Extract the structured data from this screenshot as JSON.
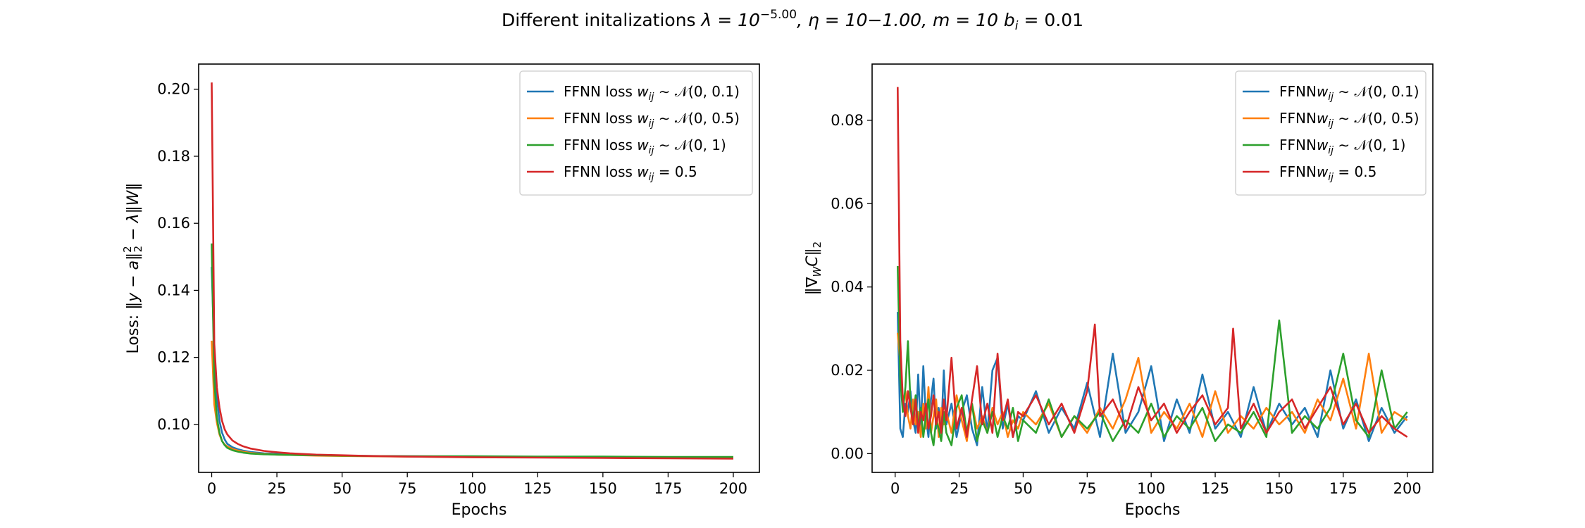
{
  "figure": {
    "suptitle_prefix": "Different initalizations ",
    "suptitle_lambda": "λ = 10",
    "suptitle_lambda_exp": "−5.00",
    "suptitle_rest": ", η = 10−1.00, m = 10  b",
    "suptitle_bsub": "i",
    "suptitle_bval": " = 0.01"
  },
  "colors": {
    "series1": "#1f77b4",
    "series2": "#ff7f0e",
    "series3": "#2ca02c",
    "series4": "#d62728"
  },
  "chart_data": [
    {
      "type": "line",
      "panel": "left",
      "xlabel": "Epochs",
      "ylabel_prefix": "Loss: ‖y − a‖",
      "ylabel_sub": "2",
      "ylabel_sup": "2",
      "ylabel_suffix": " − λ‖W‖",
      "xlim": [
        -5,
        210
      ],
      "ylim": [
        0.0857,
        0.2075
      ],
      "xticks": [
        0,
        25,
        50,
        75,
        100,
        125,
        150,
        175,
        200
      ],
      "yticks": [
        0.1,
        0.12,
        0.14,
        0.16,
        0.18,
        0.2
      ],
      "ytick_labels": [
        "0.10",
        "0.12",
        "0.14",
        "0.16",
        "0.18",
        "0.20"
      ],
      "legend_placement": "upper right",
      "series": [
        {
          "name": "FFNN loss w_ij ∼ 𝒩(0, 0.1)",
          "legend_prefix": "FFNN loss ",
          "legend_math": "w",
          "legend_sub": "ij",
          "legend_rest": " ∼ 𝒩(0, 0.1)",
          "color_key": "series1",
          "x": [
            0,
            1,
            2,
            3,
            4,
            5,
            6,
            8,
            10,
            12,
            15,
            20,
            25,
            30,
            40,
            50,
            60,
            75,
            100,
            125,
            150,
            175,
            200
          ],
          "y": [
            0.147,
            0.121,
            0.108,
            0.101,
            0.0975,
            0.0955,
            0.0942,
            0.0932,
            0.0926,
            0.0922,
            0.0918,
            0.0914,
            0.0912,
            0.0911,
            0.0909,
            0.0907,
            0.0906,
            0.0905,
            0.0904,
            0.0903,
            0.0903,
            0.0902,
            0.0902
          ]
        },
        {
          "name": "FFNN loss w_ij ∼ 𝒩(0, 0.5)",
          "legend_prefix": "FFNN loss ",
          "legend_math": "w",
          "legend_sub": "ij",
          "legend_rest": " ∼ 𝒩(0, 0.5)",
          "color_key": "series2",
          "x": [
            0,
            1,
            2,
            3,
            4,
            5,
            6,
            8,
            10,
            12,
            15,
            20,
            25,
            30,
            40,
            50,
            60,
            75,
            100,
            125,
            150,
            175,
            200
          ],
          "y": [
            0.125,
            0.106,
            0.1005,
            0.097,
            0.095,
            0.094,
            0.0934,
            0.0927,
            0.0922,
            0.0919,
            0.0915,
            0.0912,
            0.091,
            0.0909,
            0.0907,
            0.0906,
            0.0905,
            0.0904,
            0.0903,
            0.0902,
            0.0901,
            0.09,
            0.0899
          ]
        },
        {
          "name": "FFNN loss w_ij ∼ 𝒩(0, 1)",
          "legend_prefix": "FFNN loss ",
          "legend_math": "w",
          "legend_sub": "ij",
          "legend_rest": " ∼ 𝒩(0, 1)",
          "color_key": "series3",
          "x": [
            0,
            1,
            2,
            3,
            4,
            5,
            6,
            8,
            10,
            12,
            15,
            20,
            25,
            30,
            40,
            50,
            60,
            75,
            100,
            125,
            150,
            175,
            200
          ],
          "y": [
            0.154,
            0.113,
            0.102,
            0.0975,
            0.095,
            0.0938,
            0.093,
            0.0923,
            0.0919,
            0.0916,
            0.0913,
            0.0911,
            0.091,
            0.0909,
            0.0908,
            0.0907,
            0.0906,
            0.0905,
            0.0905,
            0.0904,
            0.0904,
            0.0903,
            0.0903
          ]
        },
        {
          "name": "FFNN loss w_ij = 0.5",
          "legend_prefix": "FFNN loss ",
          "legend_math": "w",
          "legend_sub": "ij",
          "legend_rest": " = 0.5",
          "color_key": "series4",
          "x": [
            0,
            1,
            2,
            3,
            4,
            5,
            6,
            8,
            10,
            12,
            15,
            20,
            25,
            30,
            40,
            50,
            60,
            75,
            100,
            125,
            150,
            175,
            200
          ],
          "y": [
            0.202,
            0.124,
            0.111,
            0.105,
            0.101,
            0.0985,
            0.097,
            0.0952,
            0.0942,
            0.0935,
            0.0928,
            0.0921,
            0.0917,
            0.0914,
            0.091,
            0.0908,
            0.0906,
            0.0904,
            0.0902,
            0.0901,
            0.09,
            0.0899,
            0.0898
          ]
        }
      ]
    },
    {
      "type": "line",
      "panel": "right",
      "xlabel": "Epochs",
      "ylabel_prefix": "‖∇",
      "ylabel_math_sub": "W",
      "ylabel_mid": "C‖",
      "ylabel_sub": "2",
      "xlim": [
        -9,
        210
      ],
      "ylim": [
        -0.0045,
        0.0935
      ],
      "xticks": [
        0,
        25,
        50,
        75,
        100,
        125,
        150,
        175,
        200
      ],
      "yticks": [
        0.0,
        0.02,
        0.04,
        0.06,
        0.08
      ],
      "ytick_labels": [
        "0.00",
        "0.02",
        "0.04",
        "0.06",
        "0.08"
      ],
      "legend_placement": "upper right",
      "series": [
        {
          "name": "FFNN w_ij ∼ 𝒩(0, 0.1)",
          "legend_prefix": "FFNN",
          "legend_math": "w",
          "legend_sub": "ij",
          "legend_rest": " ∼ 𝒩(0, 0.1)",
          "color_key": "series1",
          "x": [
            1,
            2,
            3,
            4,
            5,
            6,
            7,
            8,
            9,
            10,
            11,
            12,
            13,
            14,
            15,
            16,
            17,
            18,
            19,
            20,
            22,
            24,
            26,
            28,
            30,
            32,
            34,
            36,
            38,
            40,
            42,
            44,
            46,
            48,
            50,
            55,
            60,
            65,
            70,
            75,
            80,
            85,
            90,
            95,
            100,
            105,
            110,
            115,
            120,
            125,
            130,
            135,
            140,
            145,
            150,
            155,
            160,
            165,
            170,
            175,
            180,
            185,
            190,
            195,
            200
          ],
          "y": [
            0.034,
            0.006,
            0.004,
            0.012,
            0.01,
            0.015,
            0.008,
            0.005,
            0.019,
            0.006,
            0.021,
            0.009,
            0.004,
            0.013,
            0.018,
            0.006,
            0.011,
            0.005,
            0.02,
            0.007,
            0.012,
            0.004,
            0.01,
            0.014,
            0.006,
            0.002,
            0.016,
            0.005,
            0.02,
            0.023,
            0.006,
            0.012,
            0.004,
            0.009,
            0.008,
            0.015,
            0.005,
            0.011,
            0.006,
            0.017,
            0.004,
            0.024,
            0.005,
            0.01,
            0.021,
            0.003,
            0.013,
            0.005,
            0.019,
            0.006,
            0.01,
            0.004,
            0.016,
            0.005,
            0.012,
            0.007,
            0.011,
            0.004,
            0.02,
            0.006,
            0.013,
            0.003,
            0.011,
            0.005,
            0.009
          ]
        },
        {
          "name": "FFNN w_ij ∼ 𝒩(0, 0.5)",
          "legend_prefix": "FFNN",
          "legend_math": "w",
          "legend_sub": "ij",
          "legend_rest": " ∼ 𝒩(0, 0.5)",
          "color_key": "series2",
          "x": [
            1,
            2,
            3,
            4,
            5,
            6,
            7,
            8,
            9,
            10,
            11,
            12,
            13,
            14,
            15,
            16,
            17,
            18,
            19,
            20,
            22,
            24,
            26,
            28,
            30,
            32,
            34,
            36,
            38,
            40,
            42,
            44,
            46,
            48,
            50,
            55,
            60,
            65,
            70,
            75,
            80,
            85,
            90,
            95,
            100,
            105,
            110,
            115,
            120,
            125,
            130,
            135,
            140,
            145,
            150,
            155,
            160,
            165,
            170,
            175,
            180,
            185,
            190,
            195,
            200
          ],
          "y": [
            0.029,
            0.022,
            0.012,
            0.015,
            0.009,
            0.006,
            0.013,
            0.007,
            0.01,
            0.004,
            0.012,
            0.006,
            0.016,
            0.005,
            0.009,
            0.013,
            0.004,
            0.011,
            0.007,
            0.01,
            0.005,
            0.014,
            0.008,
            0.003,
            0.012,
            0.006,
            0.009,
            0.005,
            0.011,
            0.007,
            0.01,
            0.004,
            0.008,
            0.006,
            0.01,
            0.007,
            0.012,
            0.004,
            0.009,
            0.005,
            0.011,
            0.006,
            0.013,
            0.023,
            0.005,
            0.01,
            0.006,
            0.012,
            0.004,
            0.015,
            0.005,
            0.009,
            0.006,
            0.011,
            0.007,
            0.01,
            0.005,
            0.013,
            0.008,
            0.018,
            0.006,
            0.024,
            0.005,
            0.01,
            0.008
          ]
        },
        {
          "name": "FFNN w_ij ∼ 𝒩(0, 1)",
          "legend_prefix": "FFNN",
          "legend_math": "w",
          "legend_sub": "ij",
          "legend_rest": " ∼ 𝒩(0, 1)",
          "color_key": "series3",
          "x": [
            1,
            2,
            3,
            4,
            5,
            6,
            7,
            8,
            9,
            10,
            11,
            12,
            13,
            14,
            15,
            16,
            17,
            18,
            19,
            20,
            22,
            24,
            26,
            28,
            30,
            32,
            34,
            36,
            38,
            40,
            42,
            44,
            46,
            48,
            50,
            55,
            60,
            65,
            70,
            75,
            80,
            85,
            90,
            95,
            100,
            105,
            110,
            115,
            120,
            125,
            130,
            135,
            140,
            145,
            150,
            155,
            160,
            165,
            170,
            175,
            180,
            185,
            190,
            195,
            200
          ],
          "y": [
            0.045,
            0.018,
            0.01,
            0.016,
            0.027,
            0.012,
            0.008,
            0.014,
            0.006,
            0.011,
            0.004,
            0.009,
            0.013,
            0.005,
            0.002,
            0.008,
            0.006,
            0.003,
            0.01,
            0.005,
            0.002,
            0.011,
            0.014,
            0.005,
            0.012,
            0.003,
            0.008,
            0.005,
            0.01,
            0.004,
            0.009,
            0.006,
            0.011,
            0.003,
            0.008,
            0.005,
            0.013,
            0.004,
            0.009,
            0.006,
            0.01,
            0.003,
            0.008,
            0.005,
            0.012,
            0.004,
            0.009,
            0.006,
            0.011,
            0.003,
            0.007,
            0.005,
            0.01,
            0.004,
            0.032,
            0.005,
            0.009,
            0.006,
            0.011,
            0.024,
            0.008,
            0.004,
            0.02,
            0.006,
            0.01
          ]
        },
        {
          "name": "FFNN w_ij = 0.5",
          "legend_prefix": "FFNN",
          "legend_math": "w",
          "legend_sub": "ij",
          "legend_rest": " = 0.5",
          "color_key": "series4",
          "x": [
            1,
            2,
            3,
            4,
            5,
            6,
            7,
            8,
            9,
            10,
            11,
            12,
            13,
            14,
            15,
            16,
            17,
            18,
            19,
            20,
            22,
            24,
            26,
            28,
            30,
            32,
            34,
            36,
            38,
            40,
            42,
            44,
            46,
            48,
            50,
            55,
            60,
            65,
            70,
            75,
            78,
            80,
            85,
            90,
            95,
            100,
            105,
            110,
            115,
            120,
            125,
            130,
            132,
            135,
            140,
            145,
            150,
            155,
            160,
            165,
            170,
            175,
            180,
            185,
            190,
            195,
            200
          ],
          "y": [
            0.088,
            0.027,
            0.013,
            0.009,
            0.015,
            0.011,
            0.007,
            0.013,
            0.005,
            0.01,
            0.008,
            0.012,
            0.006,
            0.009,
            0.014,
            0.007,
            0.01,
            0.005,
            0.013,
            0.008,
            0.023,
            0.006,
            0.011,
            0.004,
            0.013,
            0.021,
            0.007,
            0.012,
            0.005,
            0.024,
            0.008,
            0.013,
            0.004,
            0.01,
            0.009,
            0.014,
            0.007,
            0.012,
            0.005,
            0.015,
            0.031,
            0.009,
            0.013,
            0.006,
            0.016,
            0.008,
            0.012,
            0.005,
            0.01,
            0.014,
            0.007,
            0.011,
            0.03,
            0.006,
            0.012,
            0.005,
            0.01,
            0.013,
            0.006,
            0.011,
            0.016,
            0.007,
            0.012,
            0.005,
            0.009,
            0.006,
            0.004
          ]
        }
      ]
    }
  ]
}
